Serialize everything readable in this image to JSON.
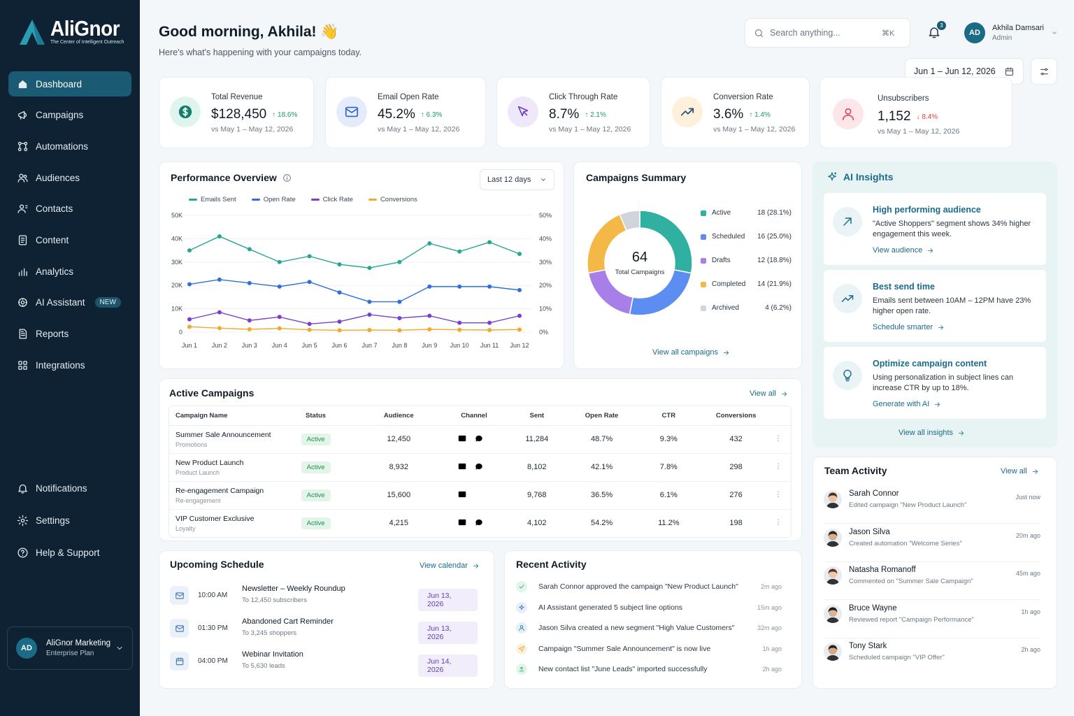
{
  "brand": {
    "name": "AliGnor",
    "tagline": "The Center of Intelligent Outreach"
  },
  "nav": [
    {
      "label": "Dashboard",
      "icon": "home-icon",
      "active": true
    },
    {
      "label": "Campaigns",
      "icon": "megaphone-icon"
    },
    {
      "label": "Automations",
      "icon": "workflow-icon"
    },
    {
      "label": "Audiences",
      "icon": "users-icon"
    },
    {
      "label": "Contacts",
      "icon": "contact-icon"
    },
    {
      "label": "Content",
      "icon": "document-icon"
    },
    {
      "label": "Analytics",
      "icon": "bar-chart-icon"
    },
    {
      "label": "AI Assistant",
      "icon": "ai-icon",
      "badge": "NEW"
    },
    {
      "label": "Reports",
      "icon": "report-icon"
    },
    {
      "label": "Integrations",
      "icon": "grid-icon"
    }
  ],
  "nav_bottom": [
    {
      "label": "Notifications",
      "icon": "bell-icon"
    },
    {
      "label": "Settings",
      "icon": "gear-icon"
    },
    {
      "label": "Help & Support",
      "icon": "help-icon"
    }
  ],
  "org": {
    "initials": "AD",
    "name": "AliGnor Marketing",
    "plan": "Enterprise Plan"
  },
  "header": {
    "greeting": "Good morning, Akhila! 👋",
    "subtitle": "Here's what's happening with your campaigns today."
  },
  "search": {
    "placeholder": "Search anything...",
    "shortcut": "⌘K"
  },
  "notifications": {
    "count": "3"
  },
  "user": {
    "initials": "AD",
    "name": "Akhila Damsari",
    "role": "Admin"
  },
  "date_range": "Jun 1 – Jun 12, 2026",
  "kpis": [
    {
      "label": "Total Revenue",
      "value": "$128,450",
      "delta": "↑ 18.6%",
      "dir": "up",
      "sub": "vs May 1 – May 12, 2026",
      "icon": "dollar-icon",
      "bg": "#dff3ef",
      "fg": "#12806a"
    },
    {
      "label": "Email Open Rate",
      "value": "45.2%",
      "delta": "↑ 6.3%",
      "dir": "up",
      "sub": "vs May 1 – May 12, 2026",
      "icon": "mail-icon",
      "bg": "#e4ecfb",
      "fg": "#2f63c8"
    },
    {
      "label": "Click Through Rate",
      "value": "8.7%",
      "delta": "↑ 2.1%",
      "dir": "up",
      "sub": "vs May 1 – May 12, 2026",
      "icon": "cursor-icon",
      "bg": "#efe8fb",
      "fg": "#6d3fc4"
    },
    {
      "label": "Conversion Rate",
      "value": "3.6%",
      "delta": "↑ 1.4%",
      "dir": "up",
      "sub": "vs May 1 – May 12, 2026",
      "icon": "trend-up-icon",
      "bg": "#fdf1dc",
      "fg": "#1b4d6b"
    },
    {
      "label": "Unsubscribers",
      "value": "1,152",
      "delta": "↓ 8.4%",
      "dir": "down",
      "sub": "vs May 1 – May 12, 2026",
      "icon": "user-icon",
      "bg": "#fde6ea",
      "fg": "#e14663"
    }
  ],
  "performance": {
    "title": "Performance Overview",
    "period": "Last 12 days"
  },
  "chart_data": [
    {
      "type": "line",
      "title": "Performance Overview",
      "categories": [
        "Jun 1",
        "Jun 2",
        "Jun 3",
        "Jun 4",
        "Jun 5",
        "Jun 6",
        "Jun 7",
        "Jun 8",
        "Jun 9",
        "Jun 10",
        "Jun 11",
        "Jun 12"
      ],
      "y_left_ticks": [
        "0",
        "10K",
        "20K",
        "30K",
        "40K",
        "50K"
      ],
      "y_right_ticks": [
        "0%",
        "10%",
        "20%",
        "30%",
        "40%",
        "50%"
      ],
      "ylim": [
        0,
        50
      ],
      "grid": "horizontal",
      "legend_position": "top",
      "series": [
        {
          "name": "Emails Sent",
          "color": "#27a696",
          "values": [
            35,
            41,
            35.5,
            30,
            32.5,
            29,
            27.5,
            30,
            38,
            34.5,
            38.5,
            33.5
          ]
        },
        {
          "name": "Open Rate",
          "color": "#2f6fdb",
          "values": [
            20.5,
            22.5,
            21,
            19.5,
            21.5,
            17,
            13,
            13,
            19.5,
            19.5,
            19.5,
            18
          ]
        },
        {
          "name": "Click Rate",
          "color": "#7b3fcf",
          "values": [
            5.5,
            8.5,
            5,
            6.5,
            3.5,
            4.5,
            7.5,
            6,
            7,
            4,
            4,
            7
          ]
        },
        {
          "name": "Conversions",
          "color": "#f0a92a",
          "values": [
            2.3,
            1.7,
            1.2,
            1.6,
            1.0,
            0.8,
            0.9,
            0.8,
            1.2,
            1.0,
            0.9,
            1.1
          ]
        }
      ]
    },
    {
      "type": "pie",
      "title": "Campaigns Summary",
      "center_value": "64",
      "center_label": "Total Campaigns",
      "slices": [
        {
          "name": "Active",
          "value": 18,
          "label": "18 (28.1%)",
          "color": "#2fb0a0"
        },
        {
          "name": "Scheduled",
          "value": 16,
          "label": "16 (25.0%)",
          "color": "#5b8ef0"
        },
        {
          "name": "Drafts",
          "value": 12,
          "label": "12 (18.8%)",
          "color": "#a87ee8"
        },
        {
          "name": "Completed",
          "value": 14,
          "label": "14 (21.9%)",
          "color": "#f4b846"
        },
        {
          "name": "Archived",
          "value": 4,
          "label": "4 (6.2%)",
          "color": "#cfd5da"
        }
      ]
    }
  ],
  "summary": {
    "title": "Campaigns Summary",
    "link": "View all campaigns"
  },
  "ai": {
    "title": "AI Insights",
    "cards": [
      {
        "title": "High performing audience",
        "desc": "\"Active Shoppers\" segment shows 34% higher engagement this week.",
        "link": "View audience",
        "icon": "arrow-up-right-icon"
      },
      {
        "title": "Best send time",
        "desc": "Emails sent between 10AM – 12PM have 23% higher open rate.",
        "link": "Schedule smarter",
        "icon": "trend-up-icon"
      },
      {
        "title": "Optimize campaign content",
        "desc": "Using personalization in subject lines can increase CTR by up to 18%.",
        "link": "Generate with AI",
        "icon": "lightbulb-icon"
      }
    ],
    "link": "View all insights"
  },
  "active": {
    "title": "Active Campaigns",
    "link": "View all",
    "columns": [
      "Campaign Name",
      "Status",
      "Audience",
      "Channel",
      "Sent",
      "Open Rate",
      "CTR",
      "Conversions"
    ],
    "rows": [
      {
        "name": "Summer Sale Announcement",
        "type": "Promotions",
        "status": "Active",
        "audience": "12,450",
        "chat": true,
        "sent": "11,284",
        "open": "48.7%",
        "ctr": "9.3%",
        "conv": "432",
        "hl": false
      },
      {
        "name": "New Product Launch",
        "type": "Product Launch",
        "status": "Active",
        "audience": "8,932",
        "chat": true,
        "sent": "8,102",
        "open": "42.1%",
        "ctr": "7.8%",
        "conv": "298",
        "hl": false
      },
      {
        "name": "Re-engagement Campaign",
        "type": "Re-engagement",
        "status": "Active",
        "audience": "15,600",
        "chat": false,
        "sent": "9,768",
        "open": "36.5%",
        "ctr": "6.1%",
        "conv": "276",
        "hl": false
      },
      {
        "name": "VIP Customer Exclusive",
        "type": "Loyalty",
        "status": "Active",
        "audience": "4,215",
        "chat": true,
        "sent": "4,102",
        "open": "54.2%",
        "ctr": "11.2%",
        "conv": "198",
        "hl": true
      }
    ]
  },
  "schedule": {
    "title": "Upcoming Schedule",
    "link": "View calendar",
    "items": [
      {
        "time": "10:00 AM",
        "title": "Newsletter – Weekly Roundup",
        "sub": "To 12,450 subscribers",
        "date": "Jun 13, 2026",
        "icon": "mail-icon"
      },
      {
        "time": "01:30 PM",
        "title": "Abandoned Cart Reminder",
        "sub": "To 3,245 shoppers",
        "date": "Jun 13, 2026",
        "icon": "mail-icon"
      },
      {
        "time": "04:00 PM",
        "title": "Webinar Invitation",
        "sub": "To 5,630 leads",
        "date": "Jun 14, 2026",
        "icon": "calendar-icon"
      }
    ]
  },
  "recent": {
    "title": "Recent Activity",
    "items": [
      {
        "text": "Sarah Connor approved the campaign \"New Product Launch\"",
        "time": "2m ago",
        "icon": "check-icon",
        "bg": "#e2f5ea",
        "fg": "#1a9e5f"
      },
      {
        "text": "AI Assistant generated 5 subject line options",
        "time": "15m ago",
        "icon": "sparkle-icon",
        "bg": "#e6eefb",
        "fg": "#2f63c8"
      },
      {
        "text": "Jason Silva created a new segment \"High Value Customers\"",
        "time": "32m ago",
        "icon": "user-icon",
        "bg": "#e2f0f7",
        "fg": "#1a6b8a"
      },
      {
        "text": "Campaign \"Summer Sale Announcement\" is now live",
        "time": "1h ago",
        "icon": "send-icon",
        "bg": "#fdf1dc",
        "fg": "#e09a1a"
      },
      {
        "text": "New contact list \"June Leads\" imported successfully",
        "time": "2h ago",
        "icon": "upload-icon",
        "bg": "#e2f5ea",
        "fg": "#1a9e5f"
      }
    ]
  },
  "team": {
    "title": "Team Activity",
    "link": "View all",
    "items": [
      {
        "name": "Sarah Connor",
        "action": "Edited campaign \"New Product Launch\"",
        "time": "Just now",
        "hair": "#4a2e1f",
        "skin": "#e9c3a3"
      },
      {
        "name": "Jason Silva",
        "action": "Created automation \"Welcome Series\"",
        "time": "20m ago",
        "hair": "#2b2420",
        "skin": "#d9ad8c"
      },
      {
        "name": "Natasha Romanoff",
        "action": "Commented on \"Summer Sale Campaign\"",
        "time": "45m ago",
        "hair": "#5a3424",
        "skin": "#efc7ad"
      },
      {
        "name": "Bruce Wayne",
        "action": "Reviewed report \"Campaign Performance\"",
        "time": "1h ago",
        "hair": "#1f1c1a",
        "skin": "#dcb396"
      },
      {
        "name": "Tony Stark",
        "action": "Scheduled campaign \"VIP Offer\"",
        "time": "2h ago",
        "hair": "#2a201b",
        "skin": "#d4a888"
      }
    ]
  }
}
